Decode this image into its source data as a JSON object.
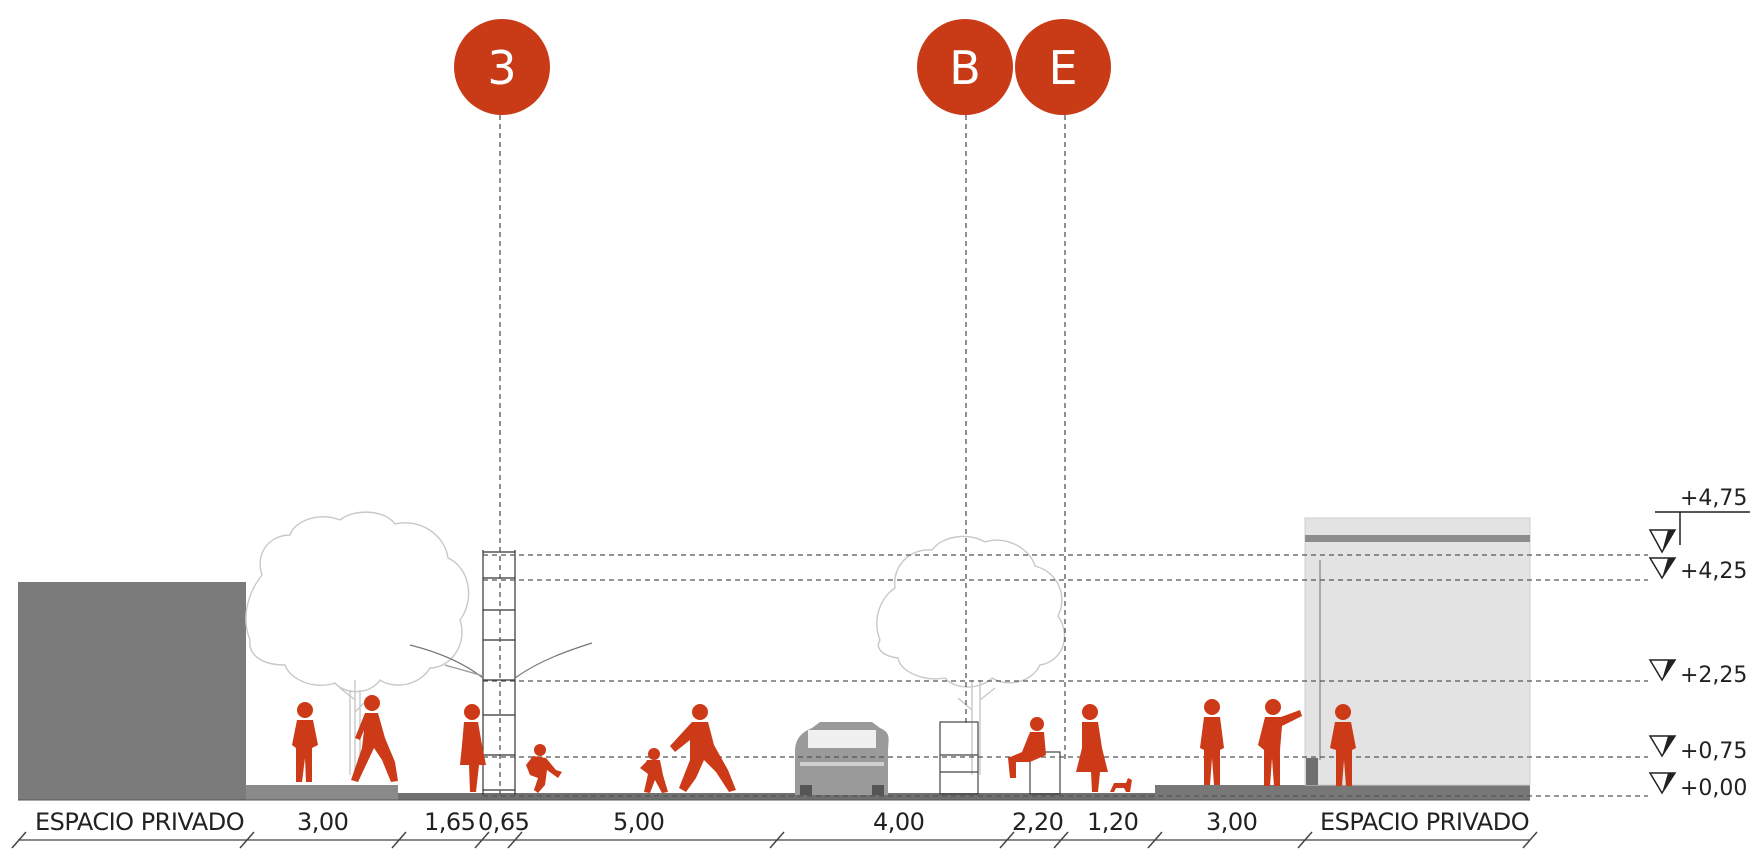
{
  "markers": [
    {
      "id": "marker-3",
      "label": "3"
    },
    {
      "id": "marker-b",
      "label": "B"
    },
    {
      "id": "marker-e",
      "label": "E"
    }
  ],
  "levels": [
    "+4,75",
    "+4,25",
    "+2,25",
    "+0,75",
    "+0,00"
  ],
  "dimensions": [
    "ESPACIO PRIVADO",
    "3,00",
    "1,65",
    "0,65",
    "5,00",
    "4,00",
    "2,20",
    "1,20",
    "3,00",
    "ESPACIO PRIVADO"
  ],
  "colors": {
    "accent": "#c93a17",
    "building": "#7b7b7b",
    "ground": "#6f6f6f",
    "shelter_fill": "#e3e3e3",
    "car": "#9a9a9a"
  },
  "icons": [
    "person-icon",
    "tree-icon",
    "car-icon",
    "level-marker-icon",
    "lamp-post-icon",
    "dog-icon"
  ]
}
